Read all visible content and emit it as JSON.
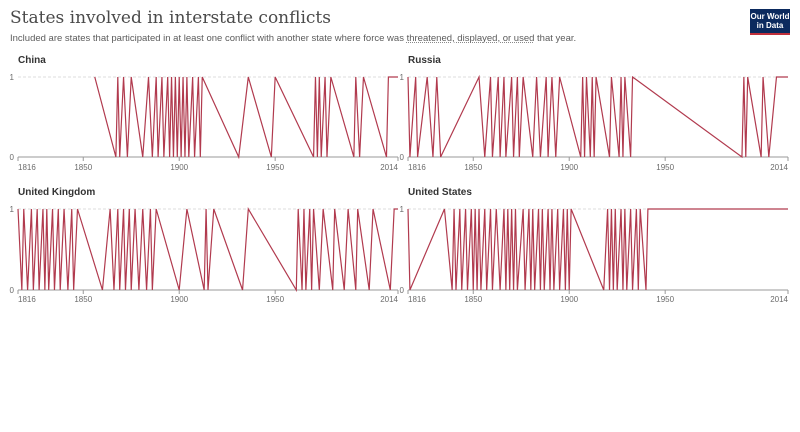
{
  "title": "States involved in interstate conflicts",
  "subtitle": {
    "before": "Included are states that participated in at least one conflict with another state where force was ",
    "link": "threatened, displayed, or used",
    "after": " that year."
  },
  "logo": {
    "line1": "Our World",
    "line2": "in Data"
  },
  "colors": {
    "line": "#b13a4e",
    "grid": "#dddddd",
    "axis": "#999999",
    "logo_bg": "#0b2a5e",
    "logo_accent": "#c0303b"
  },
  "chart_data": [
    {
      "type": "line",
      "title": "China",
      "xlim": [
        1816,
        2014
      ],
      "ylim": [
        0,
        1
      ],
      "xticks": [
        1816,
        1850,
        1900,
        1950,
        2014
      ],
      "yticks": [
        0,
        1
      ],
      "segments": [
        [
          1856,
          1,
          1
        ],
        [
          1867,
          0,
          0
        ],
        [
          1868,
          1,
          1
        ],
        [
          1869,
          0,
          0
        ],
        [
          1871,
          1,
          1
        ],
        [
          1873,
          0,
          0
        ],
        [
          1875,
          1,
          1
        ],
        [
          1881,
          0,
          0
        ],
        [
          1884,
          1,
          1
        ],
        [
          1886,
          0,
          0
        ],
        [
          1888,
          1,
          1
        ],
        [
          1889,
          0,
          0
        ],
        [
          1891,
          1,
          1
        ],
        [
          1892,
          0,
          0
        ],
        [
          1894,
          1,
          1
        ],
        [
          1895,
          0,
          0
        ],
        [
          1896,
          1,
          1
        ],
        [
          1897,
          0,
          0
        ],
        [
          1898,
          1,
          1
        ],
        [
          1899,
          0,
          0
        ],
        [
          1900,
          1,
          1
        ],
        [
          1901,
          0,
          0
        ],
        [
          1902,
          1,
          1
        ],
        [
          1903,
          0,
          0
        ],
        [
          1904,
          1,
          1
        ],
        [
          1905,
          0,
          0
        ],
        [
          1907,
          1,
          1
        ],
        [
          1908,
          0,
          0
        ],
        [
          1910,
          1,
          1
        ],
        [
          1911,
          0,
          0
        ],
        [
          1912,
          1,
          1
        ],
        [
          1931,
          0,
          0
        ],
        [
          1936,
          1,
          1
        ],
        [
          1948,
          0,
          0
        ],
        [
          1950,
          1,
          1
        ],
        [
          1970,
          0,
          0
        ],
        [
          1971,
          1,
          1
        ],
        [
          1972,
          0,
          0
        ],
        [
          1973,
          1,
          1
        ],
        [
          1974,
          0,
          0
        ],
        [
          1976,
          1,
          1
        ],
        [
          1977,
          0,
          0
        ],
        [
          1979,
          1,
          1
        ],
        [
          1991,
          0,
          0
        ],
        [
          1992,
          1,
          1
        ],
        [
          1994,
          0,
          0
        ],
        [
          1996,
          1,
          1
        ],
        [
          2008,
          0,
          0
        ],
        [
          2009,
          1,
          1
        ],
        [
          2014,
          1,
          1
        ]
      ]
    },
    {
      "type": "line",
      "title": "Russia",
      "xlim": [
        1816,
        2014
      ],
      "ylim": [
        0,
        1
      ],
      "xticks": [
        1816,
        1850,
        1900,
        1950,
        2014
      ],
      "yticks": [
        0,
        1
      ],
      "segments": [
        [
          1816,
          1,
          1
        ],
        [
          1817,
          0,
          0
        ],
        [
          1820,
          1,
          1
        ],
        [
          1821,
          0,
          0
        ],
        [
          1826,
          1,
          1
        ],
        [
          1829,
          0,
          0
        ],
        [
          1831,
          1,
          1
        ],
        [
          1833,
          0,
          0
        ],
        [
          1853,
          1,
          1
        ],
        [
          1856,
          0,
          0
        ],
        [
          1859,
          1,
          1
        ],
        [
          1860,
          0,
          0
        ],
        [
          1863,
          1,
          1
        ],
        [
          1864,
          0,
          0
        ],
        [
          1866,
          1,
          1
        ],
        [
          1867,
          0,
          0
        ],
        [
          1870,
          1,
          1
        ],
        [
          1871,
          0,
          0
        ],
        [
          1873,
          1,
          1
        ],
        [
          1874,
          0,
          0
        ],
        [
          1876,
          1,
          1
        ],
        [
          1881,
          0,
          0
        ],
        [
          1883,
          1,
          1
        ],
        [
          1885,
          0,
          0
        ],
        [
          1888,
          1,
          1
        ],
        [
          1889,
          0,
          0
        ],
        [
          1891,
          1,
          1
        ],
        [
          1893,
          0,
          0
        ],
        [
          1895,
          1,
          1
        ],
        [
          1906,
          0,
          0
        ],
        [
          1907,
          1,
          1
        ],
        [
          1908,
          0,
          0
        ],
        [
          1909,
          1,
          1
        ],
        [
          1911,
          0,
          0
        ],
        [
          1912,
          1,
          1
        ],
        [
          1913,
          0,
          0
        ],
        [
          1914,
          1,
          1
        ],
        [
          1921,
          0,
          0
        ],
        [
          1922,
          1,
          1
        ],
        [
          1926,
          0,
          0
        ],
        [
          1927,
          1,
          1
        ],
        [
          1928,
          0,
          0
        ],
        [
          1929,
          1,
          1
        ],
        [
          1932,
          0,
          0
        ],
        [
          1933,
          1,
          1
        ],
        [
          1990,
          0,
          0
        ],
        [
          1991,
          1,
          1
        ],
        [
          1992,
          0,
          0
        ],
        [
          1993,
          1,
          1
        ],
        [
          2000,
          0,
          0
        ],
        [
          2001,
          1,
          1
        ],
        [
          2004,
          0,
          0
        ],
        [
          2008,
          1,
          1
        ],
        [
          2014,
          1,
          1
        ]
      ]
    },
    {
      "type": "line",
      "title": "United Kingdom",
      "xlim": [
        1816,
        2014
      ],
      "ylim": [
        0,
        1
      ],
      "xticks": [
        1816,
        1850,
        1900,
        1950,
        2014
      ],
      "yticks": [
        0,
        1
      ],
      "segments": [
        [
          1816,
          1,
          1
        ],
        [
          1818,
          0,
          0
        ],
        [
          1819,
          1,
          1
        ],
        [
          1821,
          0,
          0
        ],
        [
          1823,
          1,
          1
        ],
        [
          1824,
          0,
          0
        ],
        [
          1826,
          1,
          1
        ],
        [
          1827,
          0,
          0
        ],
        [
          1829,
          1,
          1
        ],
        [
          1830,
          0,
          0
        ],
        [
          1831,
          1,
          1
        ],
        [
          1832,
          0,
          0
        ],
        [
          1834,
          1,
          1
        ],
        [
          1835,
          0,
          0
        ],
        [
          1837,
          1,
          1
        ],
        [
          1838,
          0,
          0
        ],
        [
          1840,
          1,
          1
        ],
        [
          1842,
          0,
          0
        ],
        [
          1844,
          1,
          1
        ],
        [
          1845,
          0,
          0
        ],
        [
          1847,
          1,
          1
        ],
        [
          1860,
          0,
          0
        ],
        [
          1864,
          1,
          1
        ],
        [
          1866,
          0,
          0
        ],
        [
          1868,
          1,
          1
        ],
        [
          1869,
          0,
          0
        ],
        [
          1871,
          1,
          1
        ],
        [
          1872,
          0,
          0
        ],
        [
          1874,
          1,
          1
        ],
        [
          1875,
          0,
          0
        ],
        [
          1877,
          1,
          1
        ],
        [
          1879,
          0,
          0
        ],
        [
          1881,
          1,
          1
        ],
        [
          1883,
          0,
          0
        ],
        [
          1885,
          1,
          1
        ],
        [
          1886,
          0,
          0
        ],
        [
          1888,
          1,
          1
        ],
        [
          1900,
          0,
          0
        ],
        [
          1904,
          1,
          1
        ],
        [
          1913,
          0,
          0
        ],
        [
          1914,
          1,
          1
        ],
        [
          1915,
          0,
          0
        ],
        [
          1918,
          1,
          1
        ],
        [
          1933,
          0,
          0
        ],
        [
          1936,
          1,
          1
        ],
        [
          1961,
          0,
          0
        ],
        [
          1962,
          1,
          1
        ],
        [
          1964,
          0,
          0
        ],
        [
          1965,
          1,
          1
        ],
        [
          1966,
          0,
          0
        ],
        [
          1968,
          1,
          1
        ],
        [
          1969,
          0,
          0
        ],
        [
          1970,
          1,
          1
        ],
        [
          1973,
          0,
          0
        ],
        [
          1975,
          1,
          1
        ],
        [
          1980,
          0,
          0
        ],
        [
          1981,
          1,
          1
        ],
        [
          1986,
          0,
          0
        ],
        [
          1988,
          1,
          1
        ],
        [
          1992,
          0,
          0
        ],
        [
          1993,
          1,
          1
        ],
        [
          1999,
          0,
          0
        ],
        [
          2001,
          1,
          1
        ],
        [
          2010,
          0,
          0
        ],
        [
          2012,
          1,
          1
        ],
        [
          2014,
          1,
          1
        ]
      ]
    },
    {
      "type": "line",
      "title": "United States",
      "xlim": [
        1816,
        2014
      ],
      "ylim": [
        0,
        1
      ],
      "xticks": [
        1816,
        1850,
        1900,
        1950,
        2014
      ],
      "yticks": [
        0,
        1
      ],
      "segments": [
        [
          1816,
          1,
          1
        ],
        [
          1817,
          0,
          0
        ],
        [
          1835,
          1,
          1
        ],
        [
          1839,
          0,
          0
        ],
        [
          1840,
          1,
          1
        ],
        [
          1841,
          0,
          0
        ],
        [
          1843,
          1,
          1
        ],
        [
          1844,
          0,
          0
        ],
        [
          1846,
          1,
          1
        ],
        [
          1847,
          0,
          0
        ],
        [
          1849,
          1,
          1
        ],
        [
          1850,
          0,
          0
        ],
        [
          1851,
          1,
          1
        ],
        [
          1852,
          0,
          0
        ],
        [
          1853,
          1,
          1
        ],
        [
          1854,
          0,
          0
        ],
        [
          1856,
          1,
          1
        ],
        [
          1857,
          0,
          0
        ],
        [
          1859,
          1,
          1
        ],
        [
          1860,
          0,
          0
        ],
        [
          1862,
          1,
          1
        ],
        [
          1864,
          0,
          0
        ],
        [
          1866,
          1,
          1
        ],
        [
          1867,
          0,
          0
        ],
        [
          1868,
          1,
          1
        ],
        [
          1869,
          0,
          0
        ],
        [
          1870,
          1,
          1
        ],
        [
          1871,
          0,
          0
        ],
        [
          1872,
          1,
          1
        ],
        [
          1873,
          0,
          0
        ],
        [
          1876,
          1,
          1
        ],
        [
          1877,
          0,
          0
        ],
        [
          1879,
          1,
          1
        ],
        [
          1880,
          0,
          0
        ],
        [
          1881,
          1,
          1
        ],
        [
          1882,
          0,
          0
        ],
        [
          1884,
          1,
          1
        ],
        [
          1885,
          0,
          0
        ],
        [
          1886,
          1,
          1
        ],
        [
          1887,
          0,
          0
        ],
        [
          1889,
          1,
          1
        ],
        [
          1890,
          0,
          0
        ],
        [
          1891,
          1,
          1
        ],
        [
          1892,
          0,
          0
        ],
        [
          1894,
          1,
          1
        ],
        [
          1895,
          0,
          0
        ],
        [
          1897,
          1,
          1
        ],
        [
          1898,
          0,
          0
        ],
        [
          1899,
          1,
          1
        ],
        [
          1900,
          0,
          0
        ],
        [
          1901,
          1,
          1
        ],
        [
          1918,
          0,
          0
        ],
        [
          1920,
          1,
          1
        ],
        [
          1921,
          0,
          0
        ],
        [
          1922,
          1,
          1
        ],
        [
          1923,
          0,
          0
        ],
        [
          1924,
          1,
          1
        ],
        [
          1925,
          0,
          0
        ],
        [
          1927,
          1,
          1
        ],
        [
          1928,
          0,
          0
        ],
        [
          1929,
          1,
          1
        ],
        [
          1930,
          0,
          0
        ],
        [
          1932,
          1,
          1
        ],
        [
          1933,
          0,
          0
        ],
        [
          1935,
          1,
          1
        ],
        [
          1936,
          0,
          0
        ],
        [
          1937,
          1,
          1
        ],
        [
          1940,
          0,
          0
        ],
        [
          1941,
          1,
          1
        ],
        [
          2014,
          1,
          1
        ]
      ]
    }
  ]
}
